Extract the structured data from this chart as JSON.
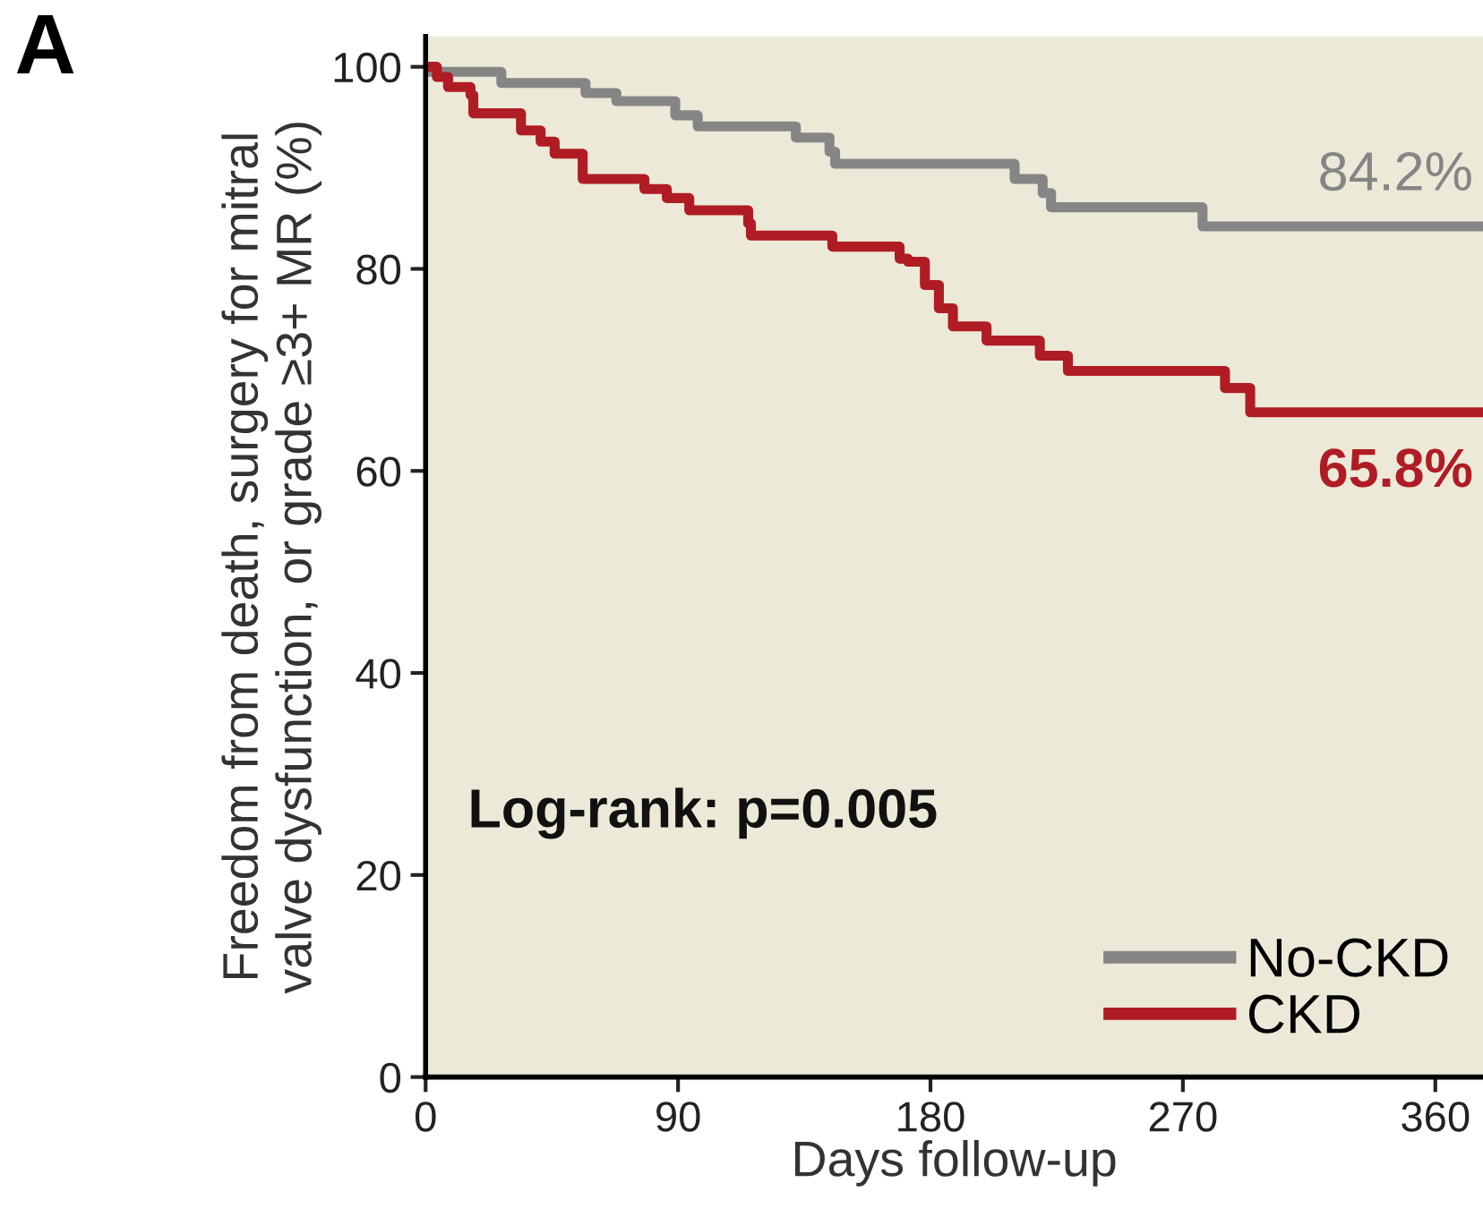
{
  "chart_data": {
    "type": "step",
    "xlabel": "Days follow-up",
    "ylabel": "Freedom from death, surgery for mitral\nvalve dysfunction, or grade ≥3+ MR (%)",
    "xlim": [
      0,
      377
    ],
    "ylim": [
      0,
      103
    ],
    "xticks": [
      0,
      90,
      180,
      270,
      360
    ],
    "yticks": [
      0,
      20,
      40,
      60,
      80,
      100
    ],
    "grid": false,
    "legend": "bottom right",
    "series": [
      {
        "name": "No-CKD",
        "color": "#858585",
        "x": [
          0,
          27,
          57,
          68,
          89,
          97,
          132,
          144,
          146,
          210,
          220,
          223,
          277,
          377
        ],
        "values": [
          99.5,
          98.4,
          97.4,
          96.6,
          95.2,
          94.1,
          93.0,
          91.6,
          90.4,
          88.9,
          87.5,
          86.1,
          84.2,
          84.2
        ]
      },
      {
        "name": "CKD",
        "color": "#b01c24",
        "x": [
          0,
          4,
          8,
          16,
          17,
          34,
          41,
          46,
          56,
          78,
          86,
          94,
          115,
          116,
          145,
          169,
          172,
          178,
          183,
          188,
          200,
          219,
          229,
          285,
          294,
          377
        ],
        "values": [
          100,
          99,
          98,
          97.2,
          95.4,
          93.7,
          92.6,
          91.4,
          88.9,
          87.9,
          87.0,
          85.8,
          84.5,
          83.3,
          82.2,
          81.0,
          80.7,
          78.4,
          76.1,
          74.3,
          72.9,
          71.4,
          69.9,
          68.2,
          65.8,
          65.8
        ]
      }
    ],
    "annotations": [
      "A",
      "Log-rank: p=0.005",
      {
        "text": "84.2%",
        "x": 377,
        "y": 84.2
      },
      {
        "text": "65.8%",
        "x": 377,
        "y": 65.8
      }
    ]
  }
}
